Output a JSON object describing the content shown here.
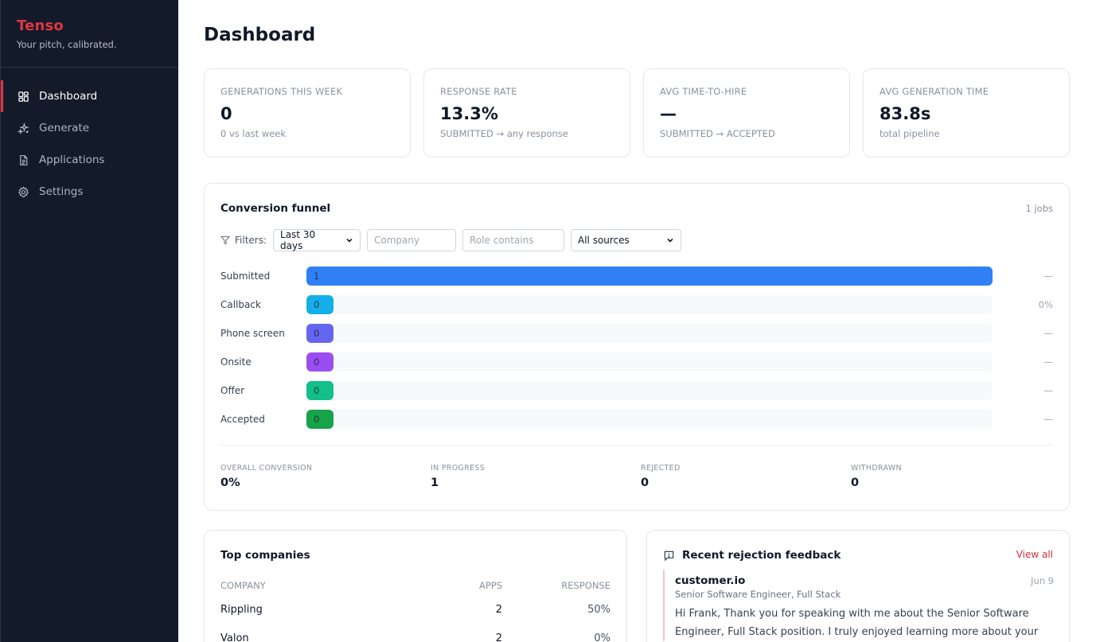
{
  "brand": {
    "name": "Tenso",
    "tagline": "Your pitch, calibrated."
  },
  "nav": [
    {
      "label": "Dashboard",
      "icon": "dashboard-icon",
      "active": true
    },
    {
      "label": "Generate",
      "icon": "sparkle-icon",
      "active": false
    },
    {
      "label": "Applications",
      "icon": "document-icon",
      "active": false
    },
    {
      "label": "Settings",
      "icon": "gear-icon",
      "active": false
    }
  ],
  "page": {
    "title": "Dashboard"
  },
  "stats": [
    {
      "label": "GENERATIONS THIS WEEK",
      "value": "0",
      "sub": "0 vs last week"
    },
    {
      "label": "RESPONSE RATE",
      "value": "13.3%",
      "sub": "SUBMITTED → any response"
    },
    {
      "label": "AVG TIME-TO-HIRE",
      "value": "—",
      "sub": "SUBMITTED → ACCEPTED"
    },
    {
      "label": "AVG GENERATION TIME",
      "value": "83.8s",
      "sub": "total pipeline"
    }
  ],
  "funnel": {
    "title": "Conversion funnel",
    "count": "1 jobs",
    "filters": {
      "label": "Filters:",
      "range": "Last 30 days",
      "company_placeholder": "Company",
      "role_placeholder": "Role contains",
      "source": "All sources"
    },
    "stages": [
      {
        "label": "Submitted",
        "count": "1",
        "fraction": 1.0,
        "color": "#2f7ff5",
        "pct": "—"
      },
      {
        "label": "Callback",
        "count": "0",
        "fraction": 0,
        "color": "#15aee8",
        "pct": "0%"
      },
      {
        "label": "Phone screen",
        "count": "0",
        "fraction": 0,
        "color": "#6366f1",
        "pct": "—"
      },
      {
        "label": "Onsite",
        "count": "0",
        "fraction": 0,
        "color": "#9a4ef1",
        "pct": "—"
      },
      {
        "label": "Offer",
        "count": "0",
        "fraction": 0,
        "color": "#13c08a",
        "pct": "—"
      },
      {
        "label": "Accepted",
        "count": "0",
        "fraction": 0,
        "color": "#16a34a",
        "pct": "—"
      }
    ],
    "summary": [
      {
        "label": "OVERALL CONVERSION",
        "value": "0%"
      },
      {
        "label": "IN PROGRESS",
        "value": "1"
      },
      {
        "label": "REJECTED",
        "value": "0"
      },
      {
        "label": "WITHDRAWN",
        "value": "0"
      }
    ]
  },
  "companies": {
    "title": "Top companies",
    "headers": {
      "company": "COMPANY",
      "apps": "APPS",
      "response": "RESPONSE"
    },
    "rows": [
      {
        "company": "Rippling",
        "apps": "2",
        "response": "50%"
      },
      {
        "company": "Valon",
        "apps": "2",
        "response": "0%"
      }
    ]
  },
  "feedback": {
    "title": "Recent rejection feedback",
    "view_all": "View all",
    "entry": {
      "company": "customer.io",
      "date": "Jun 9",
      "role": "Senior Software Engineer, Full Stack",
      "text": "Hi Frank, Thank you for speaking with me about the Senior Software Engineer, Full Stack position. I truly enjoyed learning more about your"
    }
  }
}
